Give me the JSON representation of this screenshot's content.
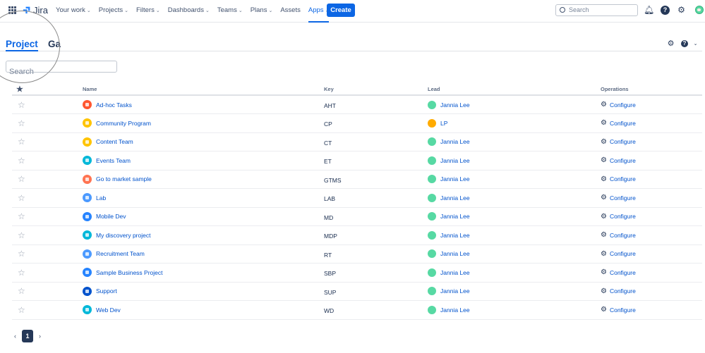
{
  "nav": {
    "logo": "Jira",
    "menu": [
      {
        "label": "Your work",
        "chevron": true
      },
      {
        "label": "Projects",
        "chevron": true
      },
      {
        "label": "Filters",
        "chevron": true
      },
      {
        "label": "Dashboards",
        "chevron": true
      },
      {
        "label": "Teams",
        "chevron": true
      },
      {
        "label": "Plans",
        "chevron": true
      },
      {
        "label": "Assets",
        "chevron": false
      },
      {
        "label": "Apps",
        "chevron": true,
        "active": true
      }
    ],
    "create": "Create",
    "search_placeholder": "Search"
  },
  "tabs": [
    {
      "label": "Project",
      "active": true
    },
    {
      "label": "Ga"
    }
  ],
  "search_placeholder": "Search",
  "table": {
    "headers": {
      "star": "★",
      "name": "Name",
      "key": "Key",
      "lead": "Lead",
      "operations": "Operations"
    },
    "rows": [
      {
        "name": "Ad-hoc Tasks",
        "key": "AHT",
        "lead": "Jannia Lee",
        "icon_color": "#ff5630",
        "op": "Configure"
      },
      {
        "name": "Community Program",
        "key": "CP",
        "lead": "LP",
        "icon_color": "#ffc400",
        "op": "Configure"
      },
      {
        "name": "Content Team",
        "key": "CT",
        "lead": "Jannia Lee",
        "icon_color": "#ffc400",
        "op": "Configure"
      },
      {
        "name": "Events Team",
        "key": "ET",
        "lead": "Jannia Lee",
        "icon_color": "#00b8d9",
        "op": "Configure"
      },
      {
        "name": "Go to market sample",
        "key": "GTMS",
        "lead": "Jannia Lee",
        "icon_color": "#ff7452",
        "op": "Configure"
      },
      {
        "name": "Lab",
        "key": "LAB",
        "lead": "Jannia Lee",
        "icon_color": "#4c9aff",
        "op": "Configure"
      },
      {
        "name": "Mobile Dev",
        "key": "MD",
        "lead": "Jannia Lee",
        "icon_color": "#2684ff",
        "op": "Configure"
      },
      {
        "name": "My discovery project",
        "key": "MDP",
        "lead": "Jannia Lee",
        "icon_color": "#00b8d9",
        "op": "Configure"
      },
      {
        "name": "Recruitment Team",
        "key": "RT",
        "lead": "Jannia Lee",
        "icon_color": "#4c9aff",
        "op": "Configure"
      },
      {
        "name": "Sample Business Project",
        "key": "SBP",
        "lead": "Jannia Lee",
        "icon_color": "#2684ff",
        "op": "Configure"
      },
      {
        "name": "Support",
        "key": "SUP",
        "lead": "Jannia Lee",
        "icon_color": "#0052cc",
        "op": "Configure"
      },
      {
        "name": "Web Dev",
        "key": "WD",
        "lead": "Jannia Lee",
        "icon_color": "#00b8d9",
        "op": "Configure"
      }
    ]
  },
  "pagination": {
    "prev": "‹",
    "current": "1",
    "next": "›"
  }
}
